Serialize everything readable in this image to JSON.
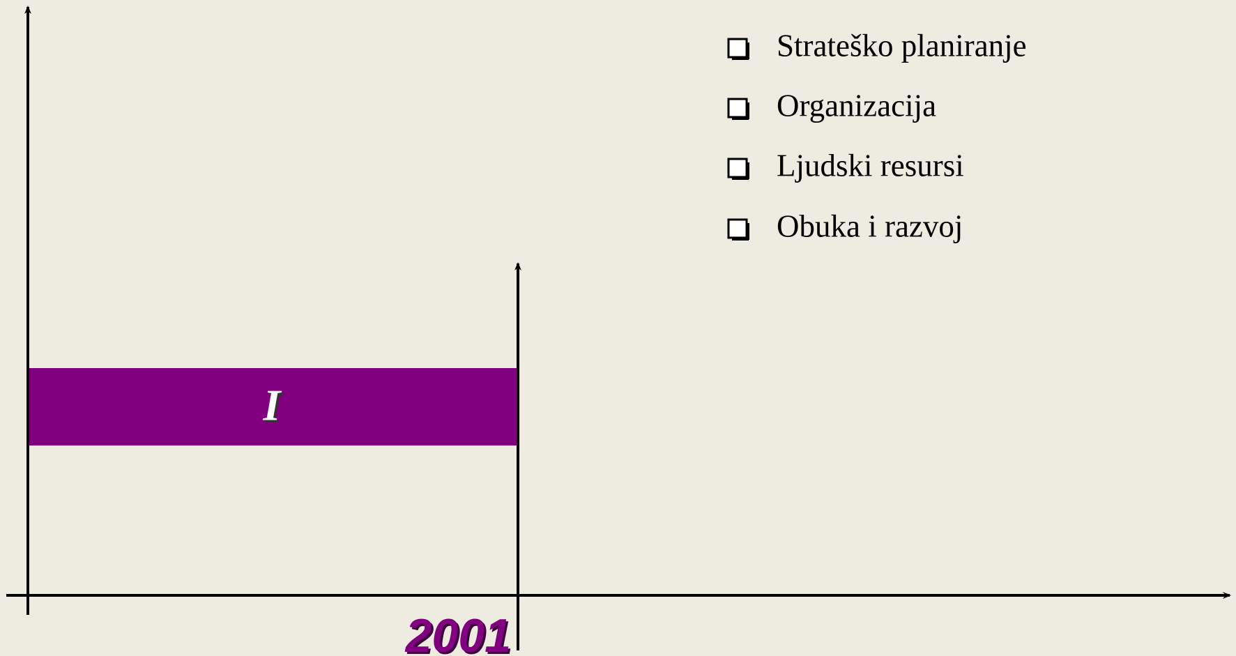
{
  "diagram": {
    "bar_label": "I",
    "year": "2001",
    "items": [
      "Strateško planiranje",
      "Organizacija",
      "Ljudski resursi",
      "Obuka i razvoj"
    ]
  }
}
